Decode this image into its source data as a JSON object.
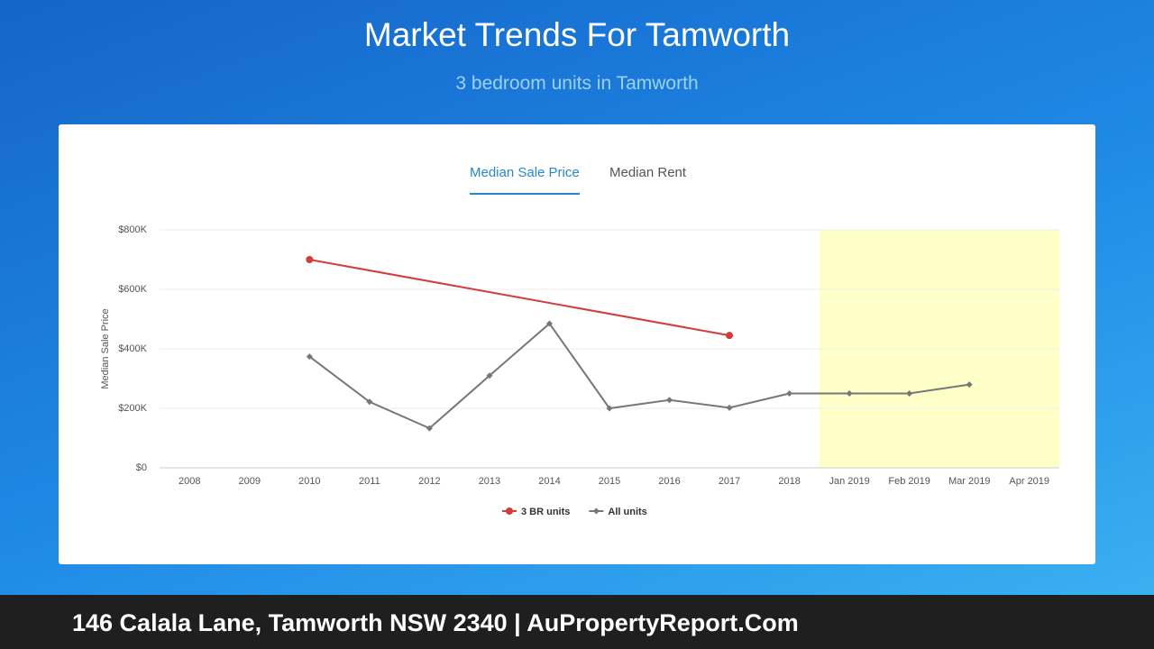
{
  "header": {
    "title": "Market Trends For Tamworth",
    "subtitle": "3 bedroom units in Tamworth"
  },
  "tabs": [
    "Median Sale Price",
    "Median Rent"
  ],
  "footer": "146 Calala Lane, Tamworth NSW 2340 | AuPropertyReport.Com",
  "chart_data": {
    "type": "line",
    "y_label": "Median Sale Price",
    "categories": [
      "2008",
      "2009",
      "2010",
      "2011",
      "2012",
      "2013",
      "2014",
      "2015",
      "2016",
      "2017",
      "2018",
      "Jan 2019",
      "Feb 2019",
      "Mar 2019",
      "Apr 2019"
    ],
    "series": [
      {
        "name": "3 BR units",
        "color": "#d63b3b",
        "marker": "circle",
        "values": [
          null,
          null,
          700000,
          null,
          null,
          null,
          null,
          null,
          null,
          445000,
          null,
          null,
          null,
          null,
          null
        ]
      },
      {
        "name": "All units",
        "color": "#777777",
        "marker": "diamond",
        "values": [
          null,
          null,
          374000,
          222000,
          133000,
          310000,
          485000,
          200000,
          228000,
          202000,
          250000,
          250000,
          250000,
          280000,
          null
        ]
      }
    ],
    "span_gaps": true,
    "ylim": [
      0,
      800000
    ],
    "yticks": [
      {
        "value": 0,
        "label": "$0"
      },
      {
        "value": 200000,
        "label": "$200K"
      },
      {
        "value": 400000,
        "label": "$400K"
      },
      {
        "value": 600000,
        "label": "$600K"
      },
      {
        "value": 800000,
        "label": "$800K"
      }
    ],
    "grid": true,
    "highlight": {
      "from": "Jan 2019",
      "color": "#ffffc8"
    },
    "legend": "bottom"
  }
}
